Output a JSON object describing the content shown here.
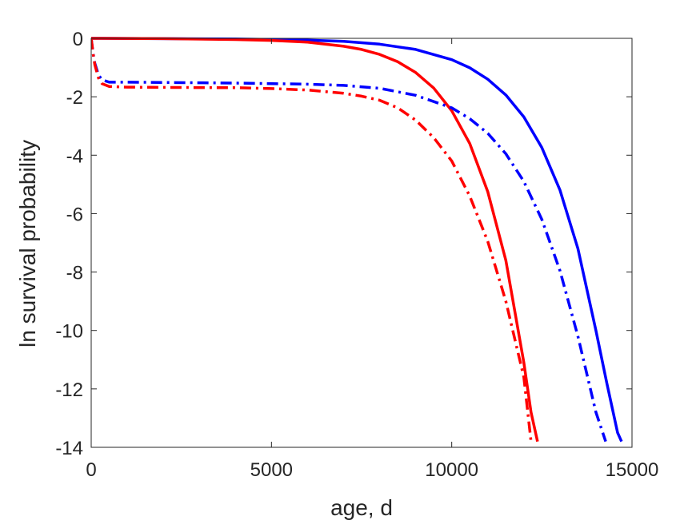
{
  "chart_data": {
    "type": "line",
    "title": "",
    "xlabel": "age, d",
    "ylabel": "ln survival probability",
    "xlim": [
      0,
      15000
    ],
    "ylim": [
      -14,
      0
    ],
    "xticks": [
      0,
      5000,
      10000,
      15000
    ],
    "xtick_labels": [
      "0",
      "5000",
      "10000",
      "15000"
    ],
    "yticks": [
      0,
      -2,
      -4,
      -6,
      -8,
      -10,
      -12,
      -14
    ],
    "ytick_labels": [
      "0",
      "-2",
      "-4",
      "-6",
      "-8",
      "-10",
      "-12",
      "-14"
    ],
    "grid": false,
    "legend": false,
    "series": [
      {
        "color": "#0000ff",
        "style": "solid",
        "x": [
          0,
          2000,
          4000,
          6000,
          7000,
          8000,
          9000,
          10000,
          10500,
          11000,
          11500,
          12000,
          12500,
          13000,
          13500,
          14000,
          14300,
          14600,
          14710
        ],
        "y": [
          0,
          -0.01,
          -0.02,
          -0.06,
          -0.1,
          -0.2,
          -0.38,
          -0.73,
          -1.01,
          -1.4,
          -1.94,
          -2.69,
          -3.74,
          -5.19,
          -7.2,
          -10.0,
          -11.8,
          -13.5,
          -13.8
        ]
      },
      {
        "color": "#ff0000",
        "style": "solid",
        "x": [
          0,
          2000,
          4000,
          5000,
          6000,
          7000,
          7500,
          8000,
          8500,
          9000,
          9500,
          10000,
          10500,
          11000,
          11500,
          12000,
          12200,
          12380
        ],
        "y": [
          0,
          -0.01,
          -0.04,
          -0.07,
          -0.13,
          -0.27,
          -0.38,
          -0.55,
          -0.8,
          -1.17,
          -1.7,
          -2.48,
          -3.6,
          -5.25,
          -7.6,
          -11.1,
          -12.8,
          -13.8
        ]
      },
      {
        "color": "#0000ff",
        "style": "dashdot",
        "x": [
          0,
          50,
          100,
          200,
          300,
          500,
          1000,
          2000,
          4000,
          6000,
          7000,
          8000,
          9000,
          10000,
          10500,
          11000,
          11500,
          12000,
          12500,
          13000,
          13500,
          14000,
          14270
        ],
        "y": [
          0,
          -0.5,
          -0.85,
          -1.25,
          -1.42,
          -1.5,
          -1.5,
          -1.51,
          -1.53,
          -1.57,
          -1.61,
          -1.71,
          -1.95,
          -2.38,
          -2.75,
          -3.25,
          -3.95,
          -4.9,
          -6.2,
          -7.95,
          -10.2,
          -12.8,
          -13.8
        ]
      },
      {
        "color": "#ff0000",
        "style": "dashdot",
        "x": [
          0,
          50,
          100,
          200,
          300,
          500,
          1000,
          2000,
          4000,
          5000,
          6000,
          7000,
          7500,
          8000,
          8500,
          9000,
          9500,
          10000,
          10500,
          11000,
          11500,
          12000,
          12200
        ],
        "y": [
          0,
          -0.5,
          -0.9,
          -1.35,
          -1.55,
          -1.65,
          -1.67,
          -1.68,
          -1.69,
          -1.72,
          -1.77,
          -1.88,
          -1.98,
          -2.12,
          -2.38,
          -2.8,
          -3.4,
          -4.2,
          -5.4,
          -6.95,
          -9.0,
          -11.6,
          -13.8
        ]
      }
    ]
  }
}
